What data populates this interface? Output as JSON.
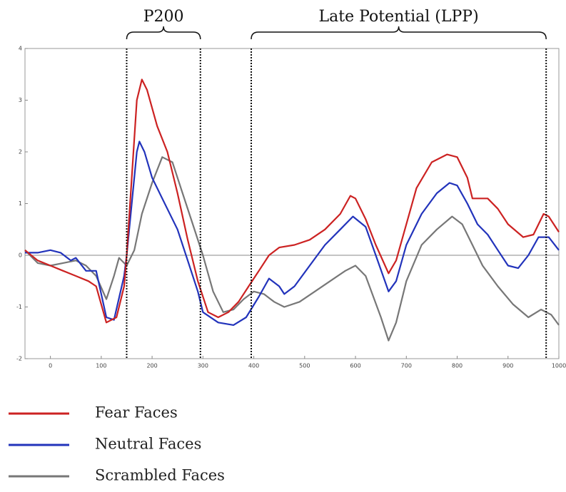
{
  "chart_data": {
    "type": "line",
    "xlim": [
      -50,
      1000
    ],
    "ylim": [
      -2,
      4
    ],
    "xticks": [
      0,
      100,
      200,
      300,
      400,
      500,
      600,
      700,
      800,
      900,
      1000
    ],
    "yticks": [
      -2,
      -1,
      0,
      1,
      2,
      3,
      4
    ],
    "vlines": [
      150,
      295,
      395,
      975
    ],
    "annotations": [
      {
        "text": "P200",
        "x": [
          150,
          295
        ]
      },
      {
        "text": "Late Potential (LPP)",
        "x": [
          395,
          975
        ]
      }
    ],
    "series": [
      {
        "name": "Fear Faces",
        "color": "#cc2222",
        "x": [
          -50,
          -25,
          0,
          25,
          50,
          75,
          90,
          110,
          130,
          145,
          150,
          160,
          170,
          180,
          190,
          210,
          230,
          250,
          270,
          290,
          310,
          330,
          350,
          370,
          390,
          410,
          430,
          450,
          480,
          510,
          540,
          570,
          590,
          600,
          620,
          640,
          665,
          680,
          700,
          720,
          750,
          780,
          800,
          820,
          830,
          860,
          880,
          900,
          930,
          950,
          970,
          980,
          1000
        ],
        "values": [
          0.1,
          -0.1,
          -0.2,
          -0.3,
          -0.4,
          -0.5,
          -0.6,
          -1.3,
          -1.2,
          -0.6,
          0,
          1.5,
          3.0,
          3.4,
          3.2,
          2.5,
          2.0,
          1.2,
          0.3,
          -0.5,
          -1.1,
          -1.2,
          -1.1,
          -0.9,
          -0.6,
          -0.3,
          0,
          0.15,
          0.2,
          0.3,
          0.5,
          0.8,
          1.15,
          1.1,
          0.7,
          0.2,
          -0.35,
          -0.1,
          0.6,
          1.3,
          1.8,
          1.95,
          1.9,
          1.5,
          1.1,
          1.1,
          0.9,
          0.6,
          0.35,
          0.4,
          0.8,
          0.75,
          0.45
        ]
      },
      {
        "name": "Neutral Faces",
        "color": "#2233bb",
        "x": [
          -50,
          -25,
          0,
          20,
          40,
          50,
          70,
          90,
          110,
          125,
          145,
          150,
          160,
          170,
          175,
          185,
          200,
          220,
          250,
          270,
          290,
          300,
          330,
          360,
          385,
          410,
          430,
          450,
          460,
          480,
          510,
          540,
          570,
          595,
          620,
          640,
          665,
          680,
          700,
          730,
          760,
          785,
          800,
          820,
          840,
          860,
          880,
          900,
          920,
          940,
          960,
          980,
          1000
        ],
        "values": [
          0.05,
          0.05,
          0.1,
          0.05,
          -0.1,
          -0.05,
          -0.3,
          -0.3,
          -1.2,
          -1.25,
          -0.4,
          0,
          1.0,
          2.0,
          2.2,
          2.0,
          1.5,
          1.1,
          0.5,
          -0.1,
          -0.7,
          -1.1,
          -1.3,
          -1.35,
          -1.2,
          -0.8,
          -0.45,
          -0.6,
          -0.75,
          -0.6,
          -0.2,
          0.2,
          0.5,
          0.75,
          0.55,
          0,
          -0.7,
          -0.5,
          0.2,
          0.8,
          1.2,
          1.4,
          1.35,
          1.0,
          0.6,
          0.4,
          0.1,
          -0.2,
          -0.25,
          0,
          0.35,
          0.35,
          0.1
        ]
      },
      {
        "name": "Scrambled Faces",
        "color": "#777777",
        "x": [
          -50,
          -25,
          0,
          25,
          50,
          70,
          90,
          110,
          125,
          135,
          150,
          165,
          180,
          200,
          220,
          240,
          260,
          280,
          300,
          320,
          340,
          360,
          380,
          400,
          420,
          440,
          460,
          490,
          520,
          550,
          580,
          600,
          620,
          650,
          665,
          680,
          700,
          730,
          760,
          790,
          810,
          830,
          850,
          880,
          910,
          940,
          965,
          985,
          1000
        ],
        "values": [
          0.1,
          -0.15,
          -0.2,
          -0.15,
          -0.1,
          -0.2,
          -0.4,
          -0.85,
          -0.4,
          -0.05,
          -0.2,
          0.1,
          0.8,
          1.4,
          1.9,
          1.8,
          1.2,
          0.6,
          0,
          -0.7,
          -1.1,
          -1.05,
          -0.85,
          -0.7,
          -0.75,
          -0.9,
          -1.0,
          -0.9,
          -0.7,
          -0.5,
          -0.3,
          -0.2,
          -0.4,
          -1.2,
          -1.65,
          -1.3,
          -0.5,
          0.2,
          0.5,
          0.75,
          0.6,
          0.2,
          -0.2,
          -0.6,
          -0.95,
          -1.2,
          -1.05,
          -1.15,
          -1.35
        ]
      }
    ]
  }
}
